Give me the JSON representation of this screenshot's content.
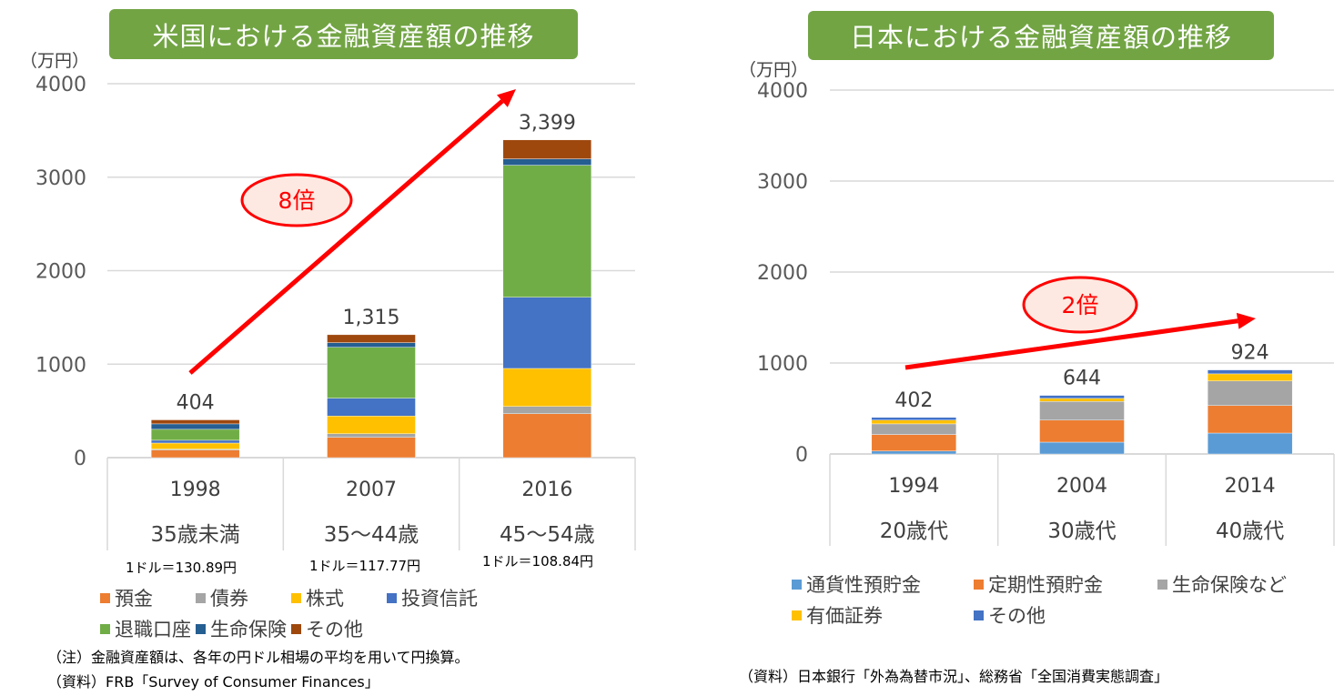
{
  "chart_data": [
    {
      "type": "bar",
      "stacked": true,
      "title": "米国における金融資産額の推移",
      "ylabel": "（万円）",
      "ylim": [
        0,
        4000
      ],
      "yticks": [
        "0",
        "1000",
        "2000",
        "3000",
        "4000"
      ],
      "grid": true,
      "categories": [
        "1998",
        "2007",
        "2016"
      ],
      "sublabels": [
        "35歳未満",
        "35～44歳",
        "45～54歳"
      ],
      "rates": [
        "1ドル＝130.89円",
        "1ドル＝117.77円",
        "1ドル＝108.84円"
      ],
      "totals": [
        "404",
        "1,315",
        "3,399"
      ],
      "series": [
        {
          "name": "預金",
          "color": "#ed7d31",
          "values": [
            81,
            217,
            470
          ]
        },
        {
          "name": "債券",
          "color": "#a5a5a5",
          "values": [
            10,
            39,
            78
          ]
        },
        {
          "name": "株式",
          "color": "#ffc000",
          "values": [
            65,
            189,
            406
          ]
        },
        {
          "name": "投資信託",
          "color": "#4472c4",
          "values": [
            30,
            191,
            762
          ]
        },
        {
          "name": "退職口座",
          "color": "#70ad47",
          "values": [
            117,
            545,
            1412
          ]
        },
        {
          "name": "生命保険",
          "color": "#255e91",
          "values": [
            58,
            49,
            68
          ]
        },
        {
          "name": "その他",
          "color": "#9e480e",
          "values": [
            43,
            85,
            203
          ]
        }
      ],
      "annotation": "8倍",
      "legend_position": "bottom",
      "notes": [
        "（注）金融資産額は、各年の円ドル相場の平均を用いて円換算。",
        "（資料）FRB「Survey of Consumer Finances」"
      ]
    },
    {
      "type": "bar",
      "stacked": true,
      "title": "日本における金融資産額の推移",
      "ylabel": "（万円）",
      "ylim": [
        0,
        4000
      ],
      "yticks": [
        "0",
        "1000",
        "2000",
        "3000",
        "4000"
      ],
      "grid": true,
      "categories": [
        "1994",
        "2004",
        "2014"
      ],
      "sublabels": [
        "20歳代",
        "30歳代",
        "40歳代"
      ],
      "totals": [
        "402",
        "644",
        "924"
      ],
      "series": [
        {
          "name": "通貨性預貯金",
          "color": "#5b9bd5",
          "values": [
            32,
            130,
            230
          ]
        },
        {
          "name": "定期性預貯金",
          "color": "#ed7d31",
          "values": [
            182,
            242,
            303
          ]
        },
        {
          "name": "生命保険など",
          "color": "#a5a5a5",
          "values": [
            117,
            205,
            270
          ]
        },
        {
          "name": "有価証券",
          "color": "#ffc000",
          "values": [
            41,
            34,
            78
          ]
        },
        {
          "name": "その他",
          "color": "#4472c4",
          "values": [
            30,
            33,
            43
          ]
        }
      ],
      "annotation": "2倍",
      "legend_position": "bottom",
      "notes": [
        "（資料）日本銀行「外為為替市況」、総務省「全国消費実態調査」"
      ]
    }
  ]
}
